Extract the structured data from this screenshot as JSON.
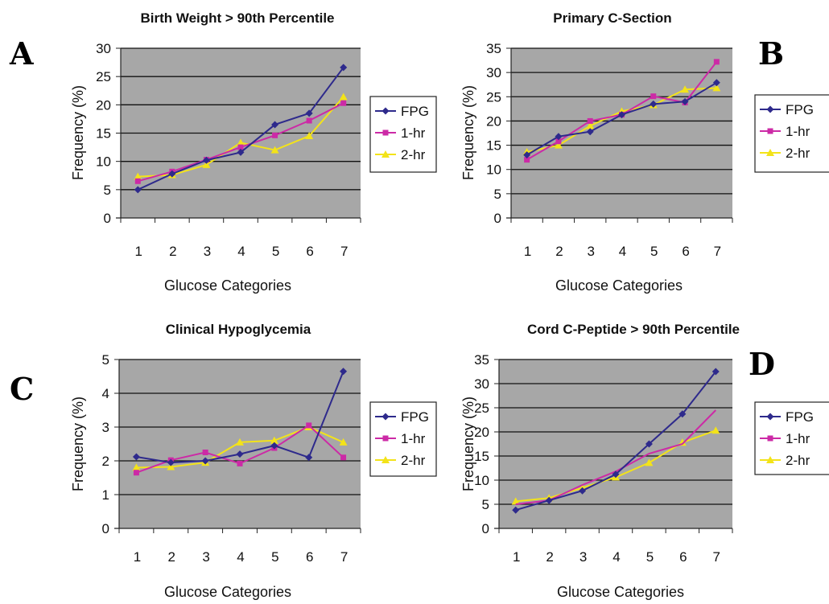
{
  "colors": {
    "plot_background": "#a7a7a7",
    "gridline": "#111111",
    "FPG": "#2e2a8c",
    "1-hr": "#cc2aa6",
    "2-hr": "#f3e319"
  },
  "chart_data": [
    {
      "panel": "A",
      "type": "line",
      "title": "Birth Weight > 90th Percentile",
      "xlabel": "Glucose Categories",
      "ylabel": "Frequency (%)",
      "categories": [
        "1",
        "2",
        "3",
        "4",
        "5",
        "6",
        "7"
      ],
      "ylim": [
        0,
        30
      ],
      "yticks": [
        0,
        5,
        10,
        15,
        20,
        25,
        30
      ],
      "grid": true,
      "legend": "right",
      "series": [
        {
          "name": "FPG",
          "marker": "diamond",
          "values": [
            5.0,
            7.8,
            10.2,
            11.6,
            16.5,
            18.5,
            26.6
          ]
        },
        {
          "name": "1-hr",
          "marker": "square",
          "values": [
            6.5,
            8.2,
            10.3,
            12.5,
            14.6,
            17.2,
            20.3
          ]
        },
        {
          "name": "2-hr",
          "marker": "triangle",
          "values": [
            7.3,
            7.6,
            9.4,
            13.3,
            12.0,
            14.5,
            21.4
          ]
        }
      ]
    },
    {
      "panel": "B",
      "type": "line",
      "title": "Primary C-Section",
      "xlabel": "Glucose Categories",
      "ylabel": "Frequency (%)",
      "categories": [
        "1",
        "2",
        "3",
        "4",
        "5",
        "6",
        "7"
      ],
      "ylim": [
        0,
        35
      ],
      "yticks": [
        0,
        5,
        10,
        15,
        20,
        25,
        30,
        35
      ],
      "grid": true,
      "legend": "right",
      "series": [
        {
          "name": "FPG",
          "marker": "diamond",
          "values": [
            13.0,
            16.8,
            17.8,
            21.3,
            23.5,
            24.0,
            27.9
          ]
        },
        {
          "name": "1-hr",
          "marker": "square",
          "values": [
            12.0,
            15.8,
            20.0,
            21.3,
            25.1,
            23.8,
            32.2
          ]
        },
        {
          "name": "2-hr",
          "marker": "triangle",
          "values": [
            13.6,
            15.0,
            19.0,
            22.0,
            23.3,
            26.5,
            26.8
          ]
        }
      ]
    },
    {
      "panel": "C",
      "type": "line",
      "title": "Clinical Hypoglycemia",
      "xlabel": "Glucose Categories",
      "ylabel": "Frequency (%)",
      "categories": [
        "1",
        "2",
        "3",
        "4",
        "5",
        "6",
        "7"
      ],
      "ylim": [
        0,
        5
      ],
      "yticks": [
        0,
        1,
        2,
        3,
        4,
        5
      ],
      "grid": true,
      "legend": "right",
      "series": [
        {
          "name": "FPG",
          "marker": "diamond",
          "values": [
            2.12,
            1.95,
            2.0,
            2.2,
            2.45,
            2.1,
            4.65
          ]
        },
        {
          "name": "1-hr",
          "marker": "square",
          "values": [
            1.65,
            2.02,
            2.25,
            1.92,
            2.38,
            3.05,
            2.1
          ]
        },
        {
          "name": "2-hr",
          "marker": "triangle",
          "values": [
            1.8,
            1.82,
            1.95,
            2.55,
            2.6,
            3.0,
            2.55
          ]
        }
      ]
    },
    {
      "panel": "D",
      "type": "line",
      "title": "Cord C-Peptide > 90th Percentile",
      "xlabel": "Glucose Categories",
      "ylabel": "Frequency (%)",
      "categories": [
        "1",
        "2",
        "3",
        "4",
        "5",
        "6",
        "7"
      ],
      "ylim": [
        0,
        35
      ],
      "yticks": [
        0,
        5,
        10,
        15,
        20,
        25,
        30,
        35
      ],
      "grid": true,
      "legend": "right",
      "series": [
        {
          "name": "FPG",
          "marker": "diamond",
          "values": [
            3.8,
            5.8,
            7.8,
            11.2,
            17.5,
            23.7,
            32.5
          ]
        },
        {
          "name": "1-hr",
          "marker": "none",
          "values": [
            5.0,
            5.8,
            9.0,
            11.8,
            15.5,
            17.5,
            24.5
          ]
        },
        {
          "name": "2-hr",
          "marker": "triangle",
          "values": [
            5.6,
            6.3,
            8.4,
            10.6,
            13.6,
            17.8,
            20.3
          ]
        }
      ]
    }
  ]
}
